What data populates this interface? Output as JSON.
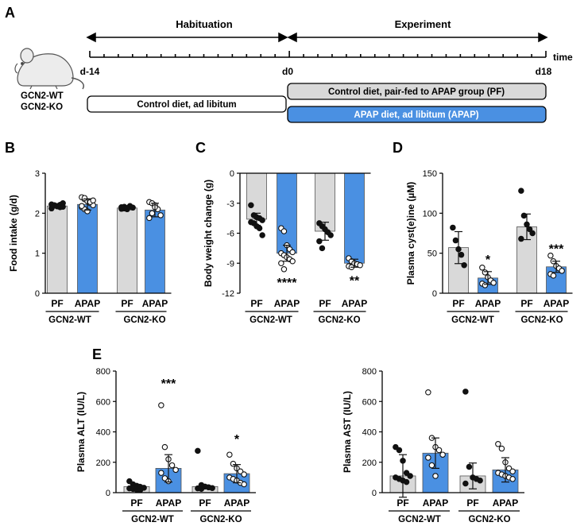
{
  "panel_labels": [
    "A",
    "B",
    "C",
    "D",
    "E"
  ],
  "timeline": {
    "phase_habituation": "Habituation",
    "phase_experiment": "Experiment",
    "start_label": "d-14",
    "mid_label": "d0",
    "end_label": "d18",
    "axis_label": "time",
    "genotypes": [
      "GCN2-WT",
      "GCN2-KO"
    ],
    "bar_habituation": "Control diet, ad libitum",
    "bar_pf": "Control diet, pair-fed to APAP group (PF)",
    "bar_apap": "APAP diet, ad libitum  (APAP)",
    "colors": {
      "pf": "#d9d9d9",
      "apap": "#4a90e2"
    }
  },
  "group_labels": [
    "PF",
    "APAP"
  ],
  "genotype_labels": [
    "GCN2-WT",
    "GCN2-KO"
  ],
  "chart_data": [
    {
      "type": "bar",
      "panel": "B",
      "ylabel": "Food intake (g/d)",
      "ylim": [
        0,
        3
      ],
      "yticks": [
        "0",
        "1",
        "2",
        "3"
      ],
      "categories": [
        "PF GCN2-WT",
        "APAP GCN2-WT",
        "PF GCN2-KO",
        "APAP GCN2-KO"
      ],
      "values": [
        2.18,
        2.22,
        2.13,
        2.08
      ],
      "sd": [
        0.05,
        0.14,
        0.04,
        0.17
      ],
      "points": [
        [
          2.22,
          2.2,
          2.18,
          2.15,
          2.25,
          2.12,
          2.19,
          2.17,
          2.21,
          2.16
        ],
        [
          2.4,
          2.35,
          2.3,
          2.25,
          2.2,
          2.15,
          2.1,
          2.05,
          2.28,
          2.32,
          2.18,
          2.38
        ],
        [
          2.15,
          2.12,
          2.1,
          2.18,
          2.14,
          2.11,
          2.16,
          2.13
        ],
        [
          2.28,
          2.25,
          2.2,
          2.1,
          1.95,
          1.88,
          2.0,
          2.15
        ]
      ],
      "annotations": [
        "",
        "",
        "",
        ""
      ]
    },
    {
      "type": "bar",
      "panel": "C",
      "ylabel": "Body weight change (g)",
      "ylim": [
        -12,
        0
      ],
      "yticks": [
        "0",
        "-3",
        "-6",
        "-9",
        "-12"
      ],
      "categories": [
        "PF GCN2-WT",
        "APAP GCN2-WT",
        "PF GCN2-KO",
        "APAP GCN2-KO"
      ],
      "values": [
        -4.6,
        -8.0,
        -5.8,
        -9.0
      ],
      "sd": [
        0.6,
        0.8,
        0.9,
        0.4
      ],
      "points": [
        [
          -3.2,
          -4.2,
          -4.4,
          -4.5,
          -4.7,
          -4.9,
          -5.0,
          -5.3,
          -5.5,
          -6.2
        ],
        [
          -5.5,
          -5.8,
          -7.2,
          -7.6,
          -7.9,
          -8.0,
          -8.2,
          -8.4,
          -8.6,
          -8.8,
          -9.0,
          -9.6
        ],
        [
          -5.0,
          -5.3,
          -5.6,
          -5.9,
          -6.2,
          -6.8,
          -7.5
        ],
        [
          -8.5,
          -8.8,
          -9.0,
          -9.1,
          -9.2,
          -9.3,
          -9.4
        ]
      ],
      "annotations": [
        "",
        "****",
        "",
        "**"
      ]
    },
    {
      "type": "bar",
      "panel": "D",
      "ylabel": "Plasma cyst(e)ine (µM)",
      "ylim": [
        0,
        150
      ],
      "yticks": [
        "0",
        "50",
        "100",
        "150"
      ],
      "categories": [
        "PF GCN2-WT",
        "APAP GCN2-WT",
        "PF GCN2-KO",
        "APAP GCN2-KO"
      ],
      "values": [
        57,
        19,
        83,
        33
      ],
      "sd": [
        20,
        8,
        16,
        7
      ],
      "points": [
        [
          82,
          66,
          55,
          48,
          35
        ],
        [
          32,
          26,
          20,
          16,
          13,
          12,
          10
        ],
        [
          128,
          97,
          86,
          80,
          75,
          68
        ],
        [
          47,
          40,
          34,
          31,
          28,
          24,
          22
        ]
      ],
      "annotations": [
        "",
        "*",
        "",
        "***"
      ]
    },
    {
      "type": "bar",
      "panel": "E-ALT",
      "ylabel": "Plasma ALT (IU/L)",
      "ylim": [
        0,
        800
      ],
      "yticks": [
        "0",
        "200",
        "400",
        "600",
        "800"
      ],
      "categories": [
        "PF GCN2-WT",
        "APAP GCN2-WT",
        "PF GCN2-KO",
        "APAP GCN2-KO"
      ],
      "values": [
        40,
        160,
        40,
        125
      ],
      "sd": [
        15,
        90,
        10,
        60
      ],
      "points": [
        [
          75,
          55,
          45,
          38,
          32,
          28,
          24,
          20,
          18
        ],
        [
          575,
          300,
          220,
          180,
          150,
          130,
          95,
          75
        ],
        [
          275,
          50,
          40,
          35,
          30,
          28,
          25
        ],
        [
          250,
          190,
          160,
          140,
          120,
          100,
          90,
          80,
          65,
          55
        ]
      ],
      "annotations": [
        "",
        "***",
        "",
        "*"
      ]
    },
    {
      "type": "bar",
      "panel": "E-AST",
      "ylabel": "Plasma AST (IU/L)",
      "ylim": [
        0,
        800
      ],
      "yticks": [
        "0",
        "200",
        "400",
        "600",
        "800"
      ],
      "categories": [
        "PF GCN2-WT",
        "APAP GCN2-WT",
        "PF GCN2-KO",
        "APAP GCN2-KO"
      ],
      "values": [
        110,
        260,
        110,
        150
      ],
      "sd": [
        140,
        100,
        85,
        80
      ],
      "points": [
        [
          300,
          280,
          210,
          130,
          110,
          100,
          90,
          80,
          70
        ],
        [
          660,
          360,
          300,
          280,
          250,
          230,
          180,
          110
        ],
        [
          665,
          170,
          100,
          90,
          80,
          60
        ],
        [
          320,
          290,
          200,
          160,
          140,
          130,
          120,
          110,
          100,
          90
        ]
      ],
      "annotations": [
        "",
        "",
        "",
        ""
      ]
    }
  ]
}
